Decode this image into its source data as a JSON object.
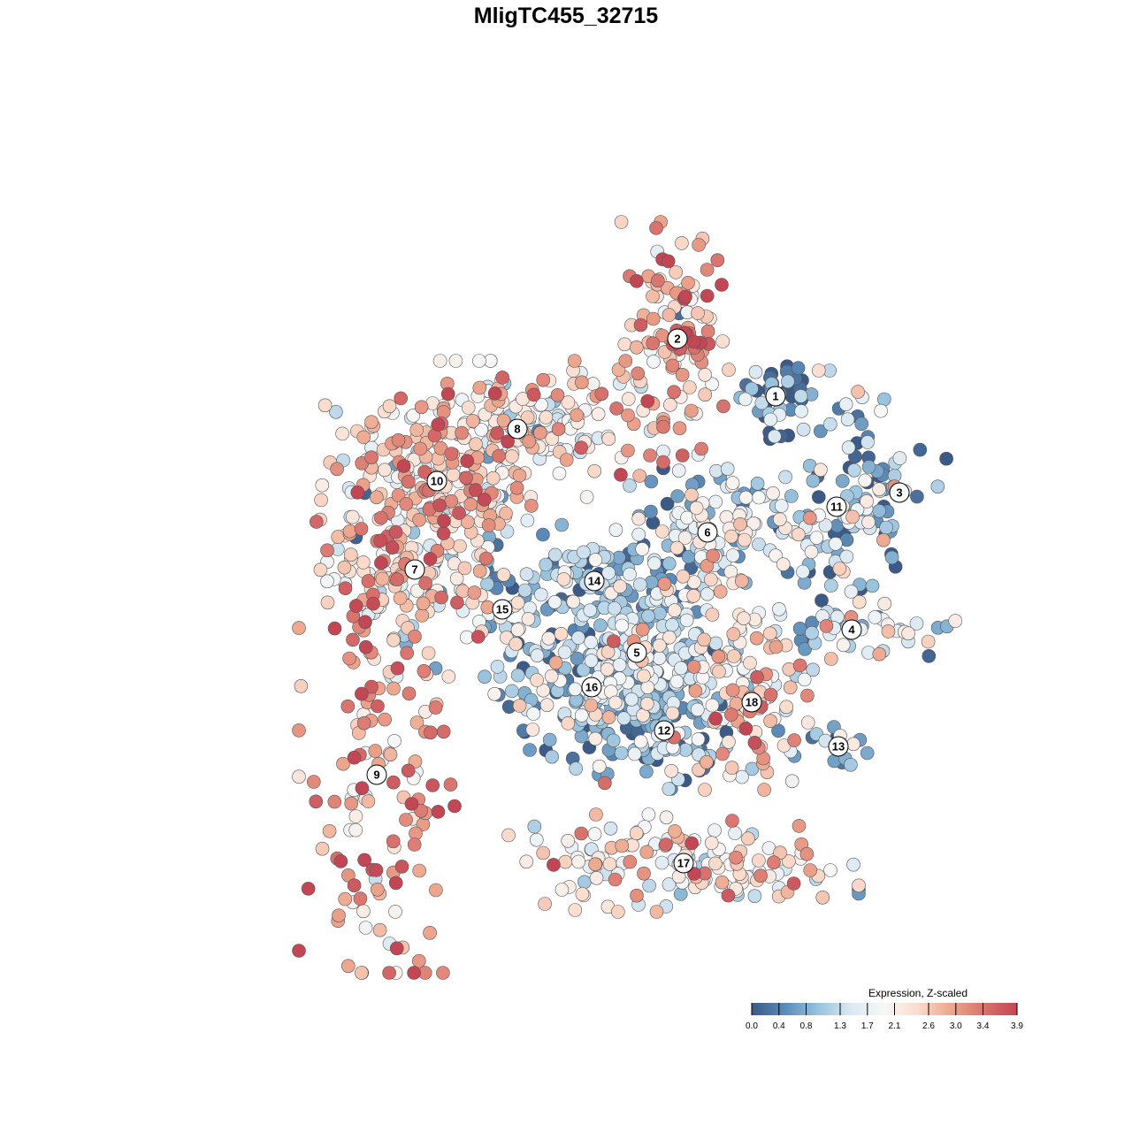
{
  "chart_data": {
    "type": "scatter",
    "title": "MligTC455_32715",
    "xlabel": "",
    "ylabel": "",
    "axes_visible": false,
    "grid": false,
    "xlim": [
      0,
      1
    ],
    "ylim": [
      0,
      1
    ],
    "point_border_color": "#555555",
    "clusters": [
      {
        "id": "1",
        "label": "1",
        "x": 0.697,
        "y": 0.712,
        "sx": 0.02,
        "sy": 0.022,
        "n": 42,
        "expr": 0.5
      },
      {
        "id": "2",
        "label": "2",
        "x": 0.586,
        "y": 0.777,
        "sx": 0.03,
        "sy": 0.06,
        "n": 110,
        "expr": 2.8
      },
      {
        "id": "3",
        "label": "3",
        "x": 0.837,
        "y": 0.603,
        "sx": 0.026,
        "sy": 0.022,
        "n": 24,
        "expr": 0.9
      },
      {
        "id": "4",
        "label": "4",
        "x": 0.783,
        "y": 0.448,
        "sx": 0.06,
        "sy": 0.015,
        "n": 48,
        "expr": 1.5
      },
      {
        "id": "5",
        "label": "5",
        "x": 0.54,
        "y": 0.422,
        "sx": 0.055,
        "sy": 0.05,
        "n": 230,
        "expr": 1.3
      },
      {
        "id": "6",
        "label": "6",
        "x": 0.62,
        "y": 0.558,
        "sx": 0.04,
        "sy": 0.04,
        "n": 120,
        "expr": 1.4
      },
      {
        "id": "7",
        "label": "7",
        "x": 0.289,
        "y": 0.516,
        "sx": 0.045,
        "sy": 0.055,
        "n": 150,
        "expr": 2.2
      },
      {
        "id": "8",
        "label": "8",
        "x": 0.405,
        "y": 0.675,
        "sx": 0.075,
        "sy": 0.035,
        "n": 200,
        "expr": 2.2
      },
      {
        "id": "9",
        "label": "9",
        "x": 0.246,
        "y": 0.284,
        "sx": 0.04,
        "sy": 0.13,
        "n": 140,
        "expr": 2.9
      },
      {
        "id": "10",
        "label": "10",
        "x": 0.314,
        "y": 0.616,
        "sx": 0.06,
        "sy": 0.04,
        "n": 160,
        "expr": 2.6
      },
      {
        "id": "11",
        "label": "11",
        "x": 0.766,
        "y": 0.587,
        "sx": 0.04,
        "sy": 0.07,
        "n": 110,
        "expr": 1.1
      },
      {
        "id": "12",
        "label": "12",
        "x": 0.571,
        "y": 0.334,
        "sx": 0.032,
        "sy": 0.03,
        "n": 85,
        "expr": 0.8
      },
      {
        "id": "13",
        "label": "13",
        "x": 0.768,
        "y": 0.316,
        "sx": 0.018,
        "sy": 0.01,
        "n": 14,
        "expr": 1.0
      },
      {
        "id": "14",
        "label": "14",
        "x": 0.492,
        "y": 0.503,
        "sx": 0.055,
        "sy": 0.03,
        "n": 85,
        "expr": 0.7
      },
      {
        "id": "15",
        "label": "15",
        "x": 0.388,
        "y": 0.471,
        "sx": 0.015,
        "sy": 0.04,
        "n": 22,
        "expr": 1.3
      },
      {
        "id": "16",
        "label": "16",
        "x": 0.489,
        "y": 0.383,
        "sx": 0.055,
        "sy": 0.045,
        "n": 130,
        "expr": 1.0
      },
      {
        "id": "17",
        "label": "17",
        "x": 0.593,
        "y": 0.184,
        "sx": 0.09,
        "sy": 0.025,
        "n": 150,
        "expr": 2.1
      },
      {
        "id": "18",
        "label": "18",
        "x": 0.67,
        "y": 0.366,
        "sx": 0.04,
        "sy": 0.045,
        "n": 95,
        "expr": 2.4
      }
    ]
  },
  "legend": {
    "title": "Expression, Z-scaled",
    "ticks": [
      "0.0",
      "0.4",
      "0.8",
      "1.3",
      "1.7",
      "2.1",
      "2.6",
      "3.0",
      "3.4",
      "3.9"
    ],
    "min": 0,
    "max": 3.9,
    "colors": [
      "#3b5a87",
      "#5b8bb8",
      "#98c2dd",
      "#dbe9f3",
      "#f7f7f7",
      "#fbdccd",
      "#eda68d",
      "#d9726d",
      "#c24654"
    ]
  }
}
